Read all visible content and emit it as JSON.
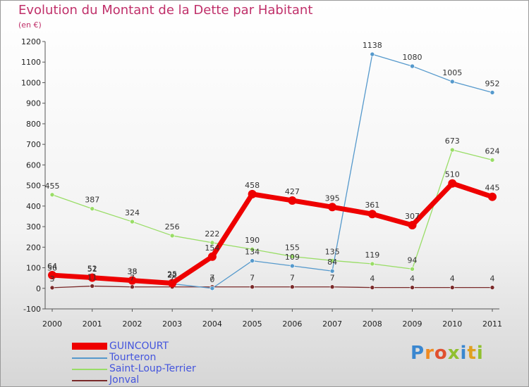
{
  "chart_data": {
    "type": "line",
    "title": "Evolution du Montant de la Dette par Habitant",
    "subtitle": "(en €)",
    "x": [
      "2000",
      "2001",
      "2002",
      "2003",
      "2004",
      "2005",
      "2006",
      "2007",
      "2008",
      "2009",
      "2010",
      "2011"
    ],
    "ylim": [
      -100,
      1200
    ],
    "yticks": [
      -100,
      0,
      100,
      200,
      300,
      400,
      500,
      600,
      700,
      800,
      900,
      1000,
      1100,
      1200
    ],
    "grid": false,
    "legend_position": "bottom-left",
    "series": [
      {
        "name": "Jonval",
        "color": "#7a2a2a",
        "values": [
          3,
          11,
          7,
          7,
          7,
          7,
          7,
          7,
          4,
          4,
          4,
          4
        ]
      },
      {
        "name": "Saint-Loup-Terrier",
        "color": "#99dd66",
        "values": [
          455,
          387,
          324,
          256,
          222,
          190,
          155,
          135,
          119,
          94,
          673,
          624
        ]
      },
      {
        "name": "Tourteron",
        "color": "#5599cc",
        "values": [
          56,
          51,
          38,
          22,
          0,
          134,
          109,
          84,
          1138,
          1080,
          1005,
          952
        ]
      },
      {
        "name": "GUINCOURT",
        "color": "#ee0000",
        "values": [
          64,
          52,
          38,
          25,
          154,
          458,
          427,
          395,
          361,
          307,
          510,
          445
        ]
      }
    ]
  },
  "legend": [
    {
      "label": "GUINCOURT",
      "color": "#ee0000"
    },
    {
      "label": "Tourteron",
      "color": "#5599cc"
    },
    {
      "label": "Saint-Loup-Terrier",
      "color": "#99dd66"
    },
    {
      "label": "Jonval",
      "color": "#7a2a2a"
    }
  ],
  "brand": {
    "letters": [
      "P",
      "r",
      "o",
      "x",
      "i",
      "t",
      "i"
    ],
    "colors": [
      "#3a87d0",
      "#f08a20",
      "#e05030",
      "#90c030",
      "#3a87d0",
      "#e0a020",
      "#90c030"
    ]
  }
}
